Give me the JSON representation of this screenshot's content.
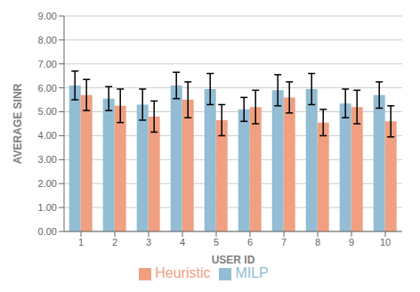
{
  "chart_data": {
    "type": "bar",
    "categories": [
      "1",
      "2",
      "3",
      "4",
      "5",
      "6",
      "7",
      "8",
      "9",
      "10"
    ],
    "series": [
      {
        "name": "MILP",
        "color": "#92BDD4",
        "values": [
          6.1,
          5.55,
          5.3,
          6.1,
          5.95,
          5.1,
          5.9,
          5.95,
          5.35,
          5.7
        ],
        "errors": [
          0.6,
          0.5,
          0.65,
          0.55,
          0.65,
          0.5,
          0.65,
          0.65,
          0.6,
          0.55
        ]
      },
      {
        "name": "Heuristic",
        "color": "#F0A080",
        "values": [
          5.7,
          5.25,
          4.8,
          5.5,
          4.65,
          5.2,
          5.6,
          4.55,
          5.2,
          4.6
        ],
        "errors": [
          0.65,
          0.7,
          0.65,
          0.75,
          0.65,
          0.7,
          0.65,
          0.55,
          0.7,
          0.65
        ]
      }
    ],
    "xlabel": "USER ID",
    "ylabel": "AVERAGE SINR",
    "ylim": [
      0,
      9.0
    ],
    "yticks": [
      {
        "value": 0,
        "label": "0.00"
      },
      {
        "value": 1,
        "label": "1.00"
      },
      {
        "value": 2,
        "label": "2.00"
      },
      {
        "value": 3,
        "label": "3.00"
      },
      {
        "value": 4,
        "label": "4.00"
      },
      {
        "value": 5,
        "label": "5.00"
      },
      {
        "value": 6,
        "label": "6.00"
      },
      {
        "value": 7,
        "label": "7.00"
      },
      {
        "value": 8,
        "label": "8.00"
      },
      {
        "value": 9,
        "label": "9.00"
      }
    ],
    "grid": true,
    "legend": "bottom"
  }
}
